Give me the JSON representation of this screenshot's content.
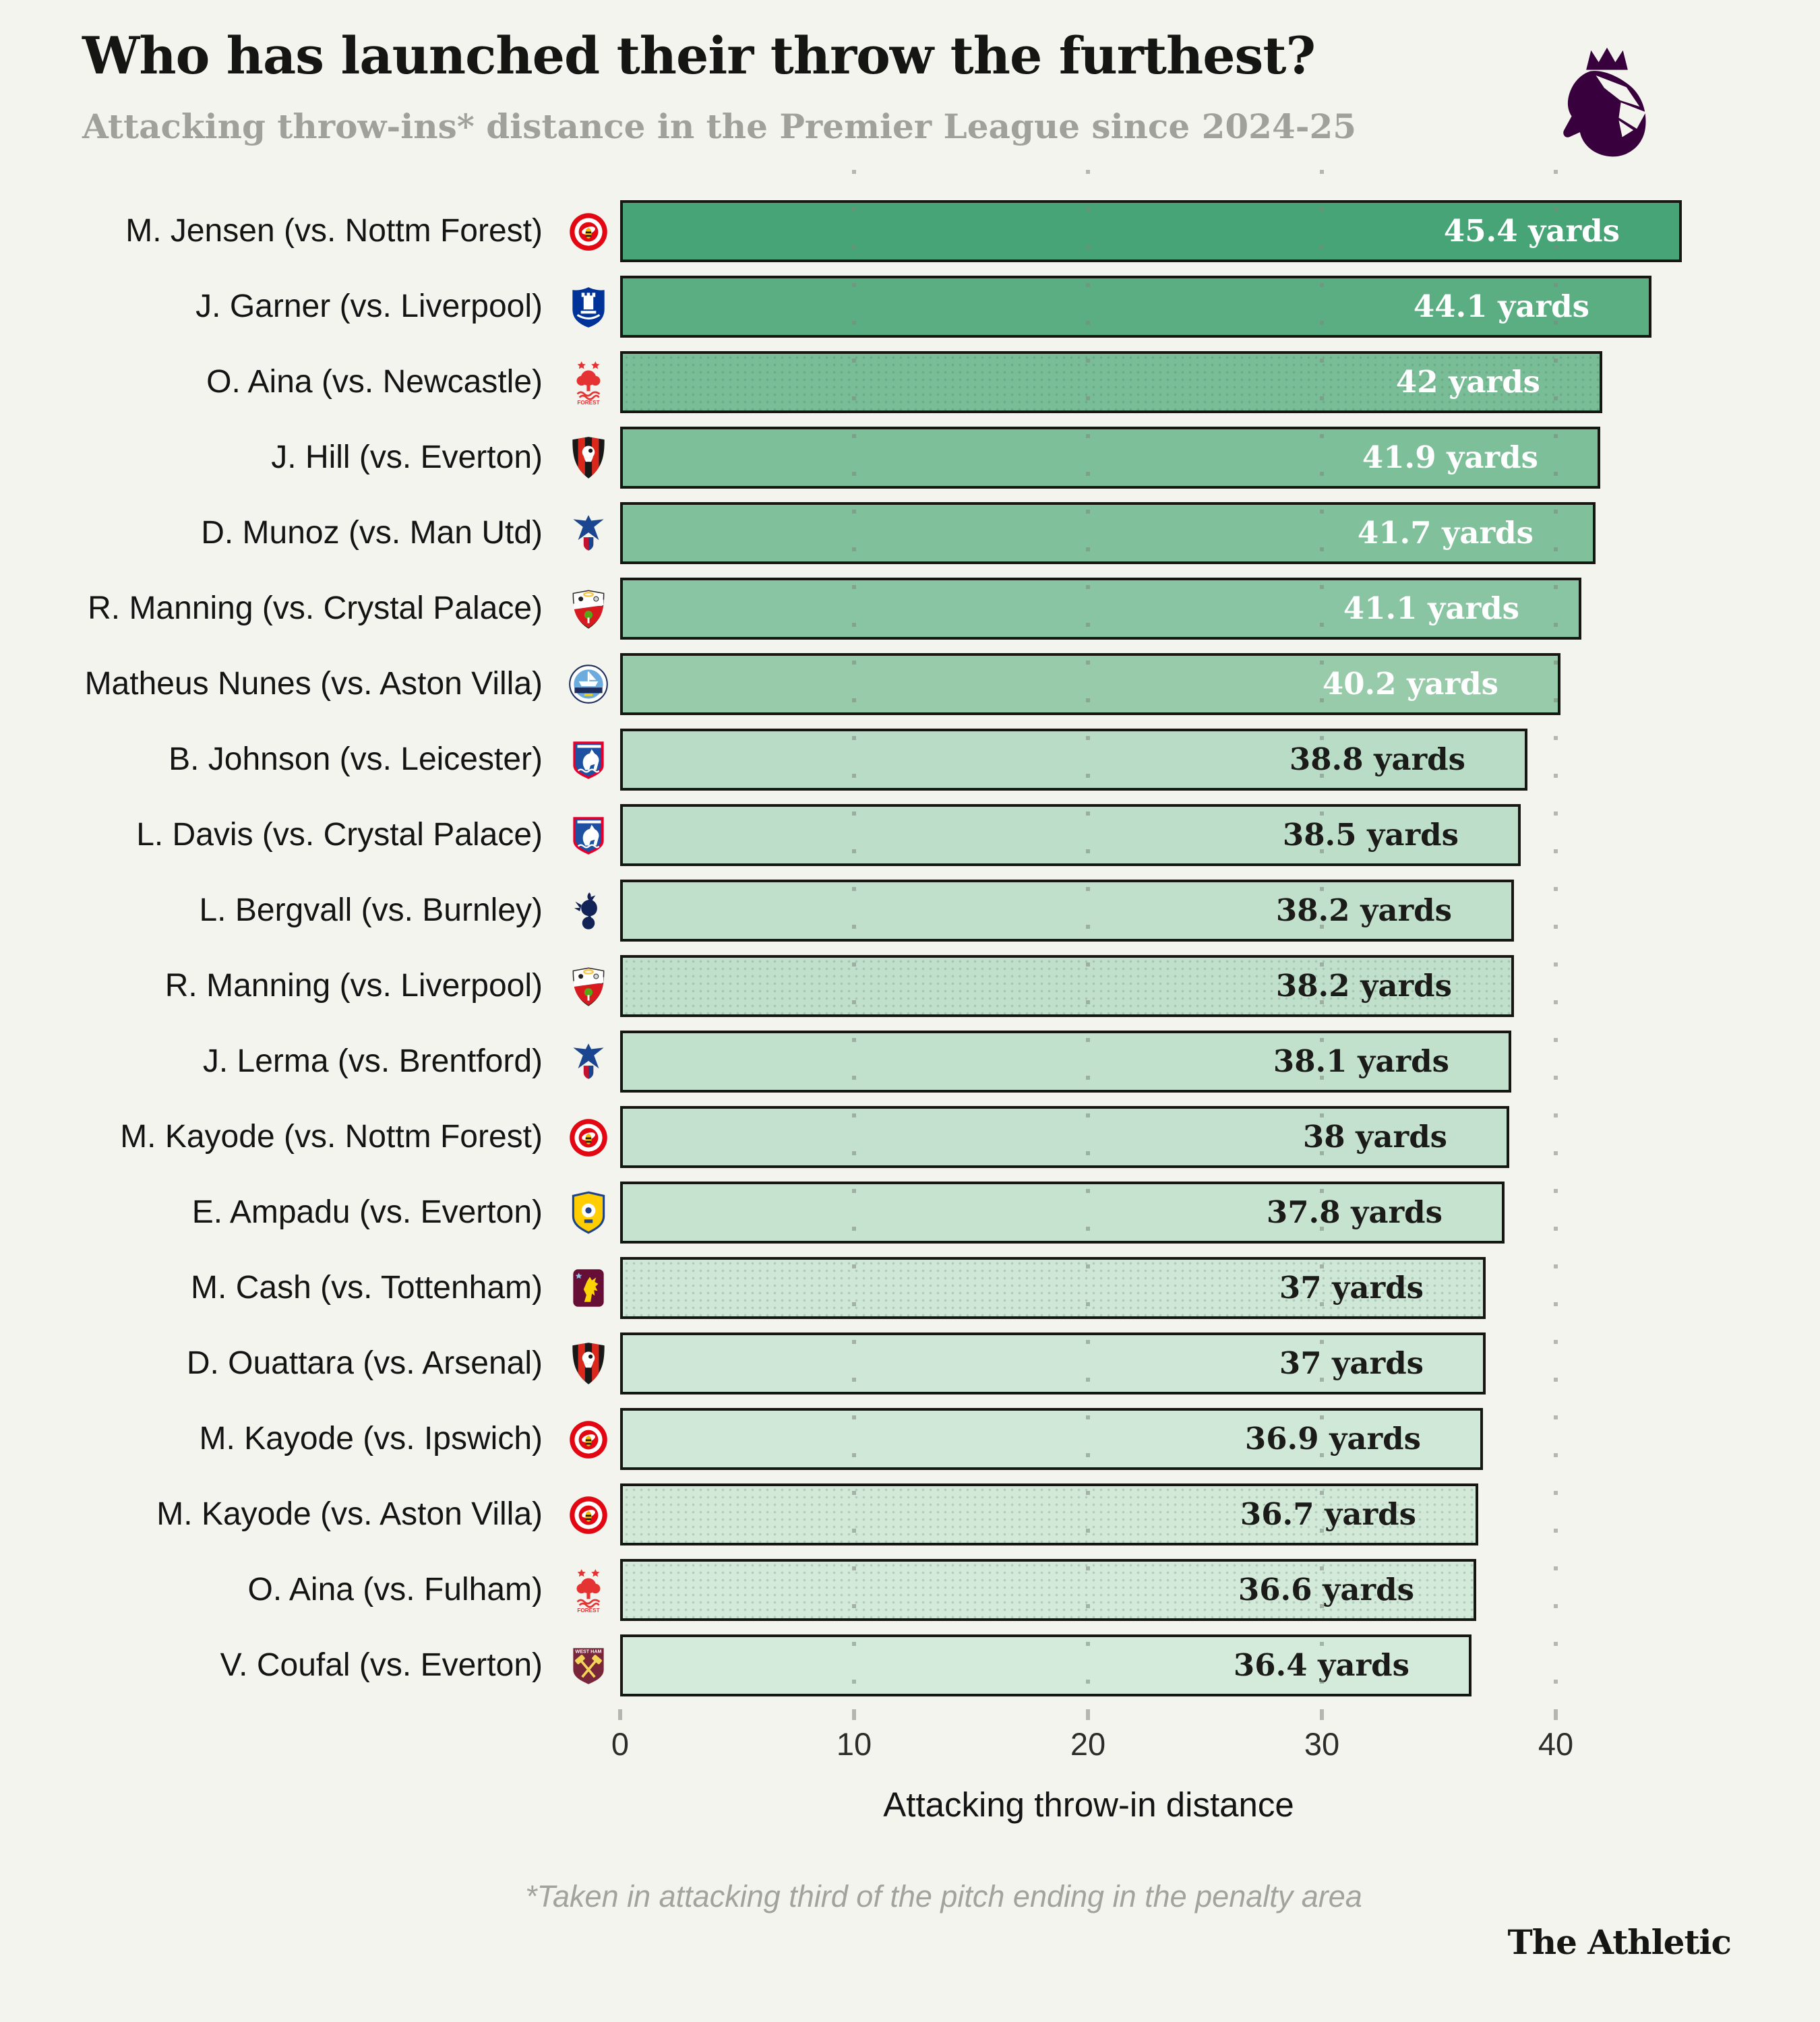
{
  "header": {
    "title": "Who has launched their throw the furthest?",
    "subtitle": "Attacking throw-ins* distance in the Premier League since 2024-25",
    "logo": "premier-league-lion",
    "logo_color": "#38003c"
  },
  "chart_data": {
    "type": "bar",
    "orientation": "horizontal",
    "title": "Who has launched their throw the furthest?",
    "subtitle": "Attacking throw-ins* distance in the Premier League since 2024-25",
    "xlabel": "Attacking throw-in distance",
    "unit": "yards",
    "xlim": [
      0,
      48.4
    ],
    "x_ticks": [
      0,
      10,
      20,
      30,
      40
    ],
    "grid": "vertical-dotted",
    "rows": [
      {
        "rank": 1,
        "player": "M. Jensen (vs. Nottm Forest)",
        "club": "brentford",
        "value": 45.4,
        "value_label": "45.4 yards",
        "fill": "#46a476",
        "label_color": "#ffffff",
        "dotted": false
      },
      {
        "rank": 2,
        "player": "J. Garner (vs. Liverpool)",
        "club": "everton",
        "value": 44.1,
        "value_label": "44.1 yards",
        "fill": "#5bae82",
        "label_color": "#ffffff",
        "dotted": false
      },
      {
        "rank": 3,
        "player": "O. Aina (vs. Newcastle)",
        "club": "nottm-forest",
        "value": 42,
        "value_label": "42 yards",
        "fill": "#79bd97",
        "label_color": "#ffffff",
        "dotted": true
      },
      {
        "rank": 4,
        "player": "J. Hill (vs. Everton)",
        "club": "bournemouth",
        "value": 41.9,
        "value_label": "41.9 yards",
        "fill": "#7cbf99",
        "label_color": "#ffffff",
        "dotted": false
      },
      {
        "rank": 5,
        "player": "D. Munoz (vs. Man Utd)",
        "club": "crystal-palace",
        "value": 41.7,
        "value_label": "41.7 yards",
        "fill": "#80c19c",
        "label_color": "#ffffff",
        "dotted": false
      },
      {
        "rank": 6,
        "player": "R. Manning (vs. Crystal Palace)",
        "club": "southampton",
        "value": 41.1,
        "value_label": "41.1 yards",
        "fill": "#89c5a3",
        "label_color": "#ffffff",
        "dotted": false
      },
      {
        "rank": 7,
        "player": "Matheus Nunes (vs. Aston Villa)",
        "club": "man-city",
        "value": 40.2,
        "value_label": "40.2 yards",
        "fill": "#97cbaa",
        "label_color": "#ffffff",
        "dotted": false
      },
      {
        "rank": 8,
        "player": "B. Johnson (vs. Leicester)",
        "club": "ipswich",
        "value": 38.8,
        "value_label": "38.8 yards",
        "fill": "#b9dcc6",
        "label_color": "#1b1b19",
        "dotted": false
      },
      {
        "rank": 9,
        "player": "L. Davis (vs. Crystal Palace)",
        "club": "ipswich",
        "value": 38.5,
        "value_label": "38.5 yards",
        "fill": "#bddec9",
        "label_color": "#1b1b19",
        "dotted": false
      },
      {
        "rank": 10,
        "player": "L. Bergvall (vs. Burnley)",
        "club": "tottenham",
        "value": 38.2,
        "value_label": "38.2 yards",
        "fill": "#c1e0cc",
        "label_color": "#1b1b19",
        "dotted": false
      },
      {
        "rank": 11,
        "player": "R. Manning (vs. Liverpool)",
        "club": "southampton",
        "value": 38.2,
        "value_label": "38.2 yards",
        "fill": "#c1e0cc",
        "label_color": "#1b1b19",
        "dotted": true
      },
      {
        "rank": 12,
        "player": "J. Lerma (vs. Brentford)",
        "club": "crystal-palace",
        "value": 38.1,
        "value_label": "38.1 yards",
        "fill": "#c2e1cd",
        "label_color": "#1b1b19",
        "dotted": false
      },
      {
        "rank": 13,
        "player": "M. Kayode (vs. Nottm Forest)",
        "club": "brentford",
        "value": 38,
        "value_label": "38 yards",
        "fill": "#c3e1ce",
        "label_color": "#1b1b19",
        "dotted": false
      },
      {
        "rank": 14,
        "player": "E. Ampadu (vs. Everton)",
        "club": "leeds",
        "value": 37.8,
        "value_label": "37.8 yards",
        "fill": "#c6e3d0",
        "label_color": "#1b1b19",
        "dotted": false
      },
      {
        "rank": 15,
        "player": "M. Cash (vs. Tottenham)",
        "club": "aston-villa",
        "value": 37,
        "value_label": "37 yards",
        "fill": "#cfe7d6",
        "label_color": "#1b1b19",
        "dotted": true
      },
      {
        "rank": 16,
        "player": "D. Ouattara (vs. Arsenal)",
        "club": "bournemouth",
        "value": 37,
        "value_label": "37 yards",
        "fill": "#cfe7d6",
        "label_color": "#1b1b19",
        "dotted": false
      },
      {
        "rank": 17,
        "player": "M. Kayode (vs. Ipswich)",
        "club": "brentford",
        "value": 36.9,
        "value_label": "36.9 yards",
        "fill": "#d0e8d7",
        "label_color": "#1b1b19",
        "dotted": false
      },
      {
        "rank": 18,
        "player": "M. Kayode (vs. Aston Villa)",
        "club": "brentford",
        "value": 36.7,
        "value_label": "36.7 yards",
        "fill": "#d2e9d8",
        "label_color": "#1b1b19",
        "dotted": true
      },
      {
        "rank": 19,
        "player": "O. Aina (vs. Fulham)",
        "club": "nottm-forest",
        "value": 36.6,
        "value_label": "36.6 yards",
        "fill": "#d3e9d9",
        "label_color": "#1b1b19",
        "dotted": true
      },
      {
        "rank": 20,
        "player": "V. Coufal (vs. Everton)",
        "club": "west-ham",
        "value": 36.4,
        "value_label": "36.4 yards",
        "fill": "#d4eada",
        "label_color": "#1b1b19",
        "dotted": false
      }
    ]
  },
  "clubs": {
    "brentford": {
      "name": "Brentford",
      "primary": "#e30613",
      "secondary": "#ffffff",
      "accent": "#fbb800"
    },
    "everton": {
      "name": "Everton",
      "primary": "#003399",
      "secondary": "#ffffff",
      "accent": "#ffffff"
    },
    "nottm-forest": {
      "name": "Nottingham Forest",
      "primary": "#e53233",
      "secondary": "#ffffff",
      "accent": "#e53233"
    },
    "bournemouth": {
      "name": "AFC Bournemouth",
      "primary": "#181818",
      "secondary": "#da291c",
      "accent": "#ffffff"
    },
    "crystal-palace": {
      "name": "Crystal Palace",
      "primary": "#1b458f",
      "secondary": "#c4122e",
      "accent": "#ffffff"
    },
    "southampton": {
      "name": "Southampton",
      "primary": "#d71920",
      "secondary": "#ffffff",
      "accent": "#58a618"
    },
    "man-city": {
      "name": "Manchester City",
      "primary": "#6cabdd",
      "secondary": "#ffffff",
      "accent": "#1c2c5b"
    },
    "ipswich": {
      "name": "Ipswich Town",
      "primary": "#1d50a2",
      "secondary": "#ffffff",
      "accent": "#e4002b"
    },
    "tottenham": {
      "name": "Tottenham Hotspur",
      "primary": "#132257",
      "secondary": "#ffffff",
      "accent": "#132257"
    },
    "leeds": {
      "name": "Leeds United",
      "primary": "#ffcd00",
      "secondary": "#1d428a",
      "accent": "#ffffff"
    },
    "aston-villa": {
      "name": "Aston Villa",
      "primary": "#670e36",
      "secondary": "#95bfe5",
      "accent": "#fbd405"
    },
    "west-ham": {
      "name": "West Ham United",
      "primary": "#7a263a",
      "secondary": "#f3d459",
      "accent": "#ffffff"
    }
  },
  "axis": {
    "ticks": [
      "0",
      "10",
      "20",
      "30",
      "40"
    ],
    "label": "Attacking throw-in distance"
  },
  "footnote": "*Taken in attacking third of the pitch ending in the penalty area",
  "branding": "The Athletic",
  "colors": {
    "background": "#f4f4ee",
    "bar_border": "#161613",
    "grid": "#7d877d",
    "title": "#151513",
    "subtitle": "#a1a19c"
  }
}
